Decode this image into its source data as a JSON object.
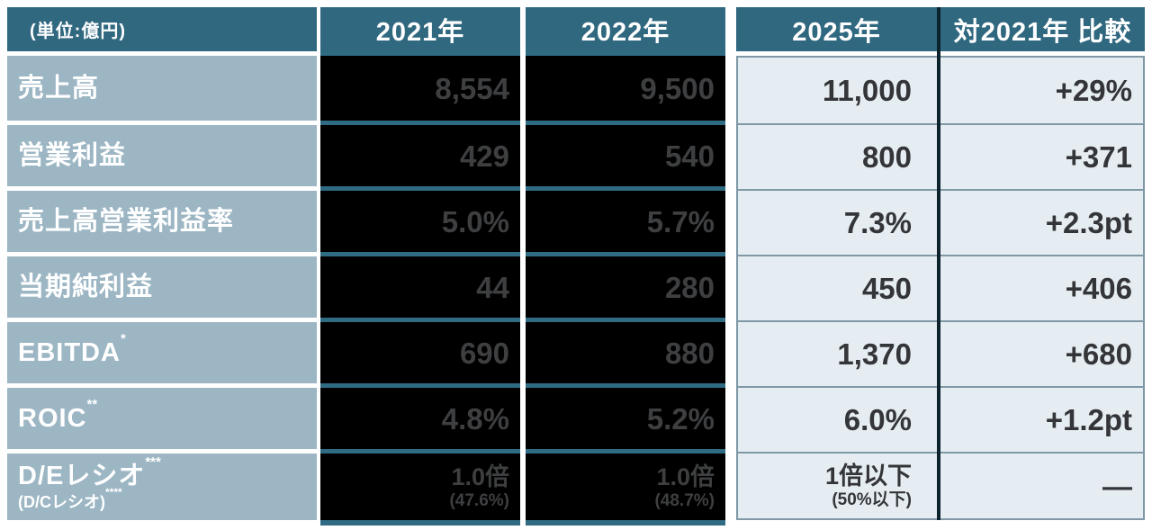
{
  "table": {
    "unit_label": "(単位:億円)",
    "col_headers": {
      "y2021": "2021年",
      "y2022": "2022年",
      "y2025": "2025年",
      "vs": "対2021年 比較"
    },
    "rows": [
      {
        "label": "売上高",
        "label_sup": "",
        "y2021": "8,554",
        "y2022": "9,500",
        "y2025": "11,000",
        "vs": "+29%"
      },
      {
        "label": "営業利益",
        "label_sup": "",
        "y2021": "429",
        "y2022": "540",
        "y2025": "800",
        "vs": "+371"
      },
      {
        "label": "売上高営業利益率",
        "label_sup": "",
        "y2021": "5.0%",
        "y2022": "5.7%",
        "y2025": "7.3%",
        "vs": "+2.3pt"
      },
      {
        "label": "当期純利益",
        "label_sup": "",
        "y2021": "44",
        "y2022": "280",
        "y2025": "450",
        "vs": "+406"
      },
      {
        "label": "EBITDA",
        "label_sup": "*",
        "y2021": "690",
        "y2022": "880",
        "y2025": "1,370",
        "vs": "+680"
      },
      {
        "label": "ROIC",
        "label_sup": "**",
        "y2021": "4.8%",
        "y2022": "5.2%",
        "y2025": "6.0%",
        "vs": "+1.2pt"
      },
      {
        "label": "D/Eレシオ",
        "label_sup": "***",
        "sub_label": "(D/Cレシオ)",
        "sub_label_sup": "****",
        "y2021": "1.0倍",
        "y2021_sub": "(47.6%)",
        "y2022": "1.0倍",
        "y2022_sub": "(48.7%)",
        "y2025": "1倍以下",
        "y2025_sub": "(50%以下)",
        "vs": "—"
      }
    ],
    "colors": {
      "header_teal": "#306880",
      "label_bg": "#9CB6C4",
      "cell_black": "#000000",
      "black_text": "#3E3F41",
      "light_bg": "#E6EDF2",
      "light_text": "#333538",
      "teal_band": "#2F6B82",
      "muted_border": "#7E98A6",
      "dark_divider": "#0C222D"
    }
  }
}
